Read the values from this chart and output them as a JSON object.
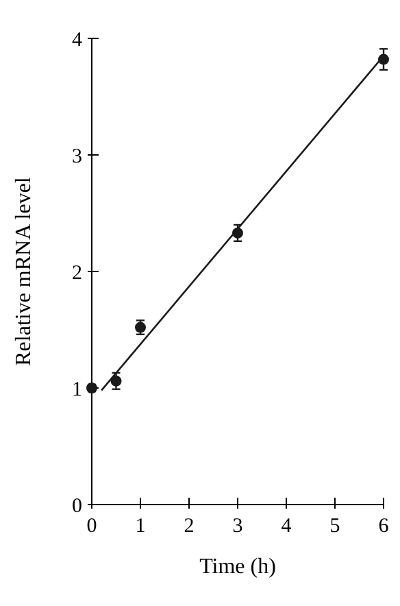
{
  "chart_data": {
    "type": "scatter",
    "xlabel": "Time (h)",
    "ylabel": "Relative mRNA level",
    "xlim": [
      0,
      6
    ],
    "ylim": [
      0,
      4
    ],
    "xticks": [
      0,
      1,
      2,
      3,
      4,
      5,
      6
    ],
    "yticks": [
      0,
      1,
      2,
      3,
      4
    ],
    "grid": false,
    "marker": "circle",
    "series": [
      {
        "color": "#1a1a1a",
        "x": [
          0,
          0.5,
          1,
          3,
          6
        ],
        "values": [
          1.0,
          1.06,
          1.52,
          2.33,
          3.82
        ],
        "errors": [
          0.03,
          0.07,
          0.06,
          0.07,
          0.09
        ]
      },
      {
        "type": "line",
        "color": "#1a1a1a",
        "x": [
          0.2,
          6
        ],
        "values": [
          0.98,
          3.85
        ],
        "line_style": "solid",
        "marker": "none"
      }
    ]
  }
}
